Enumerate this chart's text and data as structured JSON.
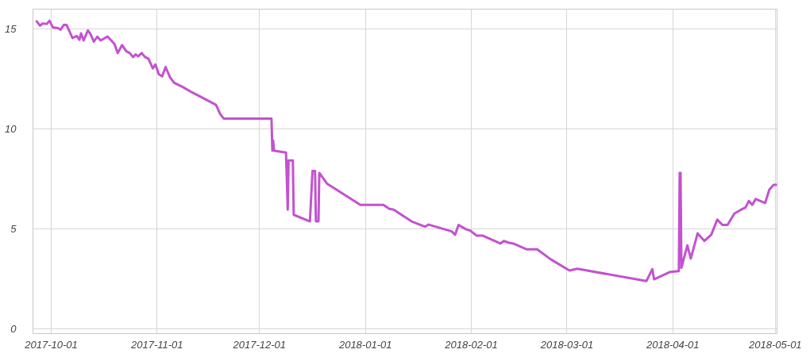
{
  "chart_data": {
    "type": "line",
    "x": [
      "2017-09-26T18:00",
      "2017-09-27T18:00",
      "2017-09-28T12:00",
      "2017-09-29T18:00",
      "2017-09-30T12:00",
      "2017-10-01T12:00",
      "2017-10-03T00:00",
      "2017-10-03T18:00",
      "2017-10-04T18:00",
      "2017-10-05T12:00",
      "2017-10-07T06:00",
      "2017-10-08T12:00",
      "2017-10-09T06:00",
      "2017-10-09T18:00",
      "2017-10-10T12:00",
      "2017-10-11T18:00",
      "2017-10-12T12:00",
      "2017-10-13T12:00",
      "2017-10-14T12:00",
      "2017-10-15T12:00",
      "2017-10-17T12:00",
      "2017-10-19T12:00",
      "2017-10-20T12:00",
      "2017-10-21T18:00",
      "2017-10-23T00:00",
      "2017-10-24T00:00",
      "2017-10-25T00:00",
      "2017-10-25T18:00",
      "2017-10-26T12:00",
      "2017-10-27T12:00",
      "2017-10-28T12:00",
      "2017-10-29T12:00",
      "2017-10-30T18:00",
      "2017-10-31T12:00",
      "2017-11-01T12:00",
      "2017-11-02T12:00",
      "2017-11-03T12:00",
      "2017-11-04T18:00",
      "2017-11-06T00:00",
      "2017-11-08T12:00",
      "2017-11-11T06:00",
      "2017-11-18T06:00",
      "2017-11-19T12:00",
      "2017-11-20T12:00",
      "2017-12-04T12:00",
      "2017-12-04T18:00",
      "2017-12-05T00:00",
      "2017-12-05T06:00",
      "2017-12-08T18:00",
      "2017-12-09T06:00",
      "2017-12-09T12:00",
      "2017-12-10T18:00",
      "2017-12-11T00:00",
      "2017-12-15T18:00",
      "2017-12-16T12:00",
      "2017-12-17T06:00",
      "2017-12-17T12:00",
      "2017-12-18T06:00",
      "2017-12-18T12:00",
      "2017-12-20T18:00",
      "2017-12-30T12:00",
      "2018-01-06T06:00",
      "2018-01-08T00:00",
      "2018-01-09T06:00",
      "2018-01-14T12:00",
      "2018-01-18T12:00",
      "2018-01-19T12:00",
      "2018-01-26T06:00",
      "2018-01-27T06:00",
      "2018-01-28T06:00",
      "2018-01-30T12:00",
      "2018-01-31T18:00",
      "2018-02-02T12:00",
      "2018-02-04T06:00",
      "2018-02-09T12:00",
      "2018-02-10T12:00",
      "2018-02-12T00:00",
      "2018-02-13T06:00",
      "2018-02-17T06:00",
      "2018-02-20T06:00",
      "2018-02-24T06:00",
      "2018-03-01T18:00",
      "2018-03-04T00:00",
      "2018-03-24T06:00",
      "2018-03-26T00:00",
      "2018-03-26T12:00",
      "2018-03-31T06:00",
      "2018-04-02T18:00",
      "2018-04-03T00:00",
      "2018-04-03T06:00",
      "2018-04-03T12:00",
      "2018-04-05T06:00",
      "2018-04-06T06:00",
      "2018-04-08T06:00",
      "2018-04-10T06:00",
      "2018-04-12T06:00",
      "2018-04-14T00:00",
      "2018-04-15T12:00",
      "2018-04-17T00:00",
      "2018-04-19T00:00",
      "2018-04-21T00:00",
      "2018-04-22T06:00",
      "2018-04-23T06:00",
      "2018-04-24T06:00",
      "2018-04-25T06:00",
      "2018-04-28T00:00",
      "2018-04-29T06:00",
      "2018-04-30T12:00",
      "2018-05-01T06:00"
    ],
    "series": [
      {
        "color": "#c352cf",
        "values": [
          15.39,
          15.17,
          15.28,
          15.26,
          15.42,
          15.09,
          15.05,
          14.97,
          15.22,
          15.21,
          14.55,
          14.66,
          14.46,
          14.79,
          14.43,
          14.93,
          14.75,
          14.37,
          14.62,
          14.43,
          14.63,
          14.26,
          13.8,
          14.2,
          13.89,
          13.8,
          13.6,
          13.73,
          13.64,
          13.8,
          13.6,
          13.51,
          13.03,
          13.23,
          12.74,
          12.63,
          13.1,
          12.6,
          12.31,
          12.1,
          11.83,
          11.21,
          10.74,
          10.52,
          10.52,
          8.91,
          9.41,
          8.91,
          8.82,
          5.96,
          8.42,
          8.42,
          5.7,
          5.37,
          7.89,
          7.89,
          5.37,
          5.37,
          7.8,
          7.26,
          6.2,
          6.2,
          6.0,
          5.96,
          5.37,
          5.1,
          5.21,
          4.87,
          4.7,
          5.19,
          4.97,
          4.9,
          4.66,
          4.66,
          4.26,
          4.39,
          4.3,
          4.26,
          3.97,
          3.97,
          3.47,
          2.91,
          3.0,
          2.38,
          2.98,
          2.47,
          2.84,
          2.88,
          7.8,
          7.8,
          3.04,
          4.17,
          3.51,
          4.77,
          4.39,
          4.7,
          5.46,
          5.19,
          5.19,
          5.76,
          5.96,
          6.06,
          6.39,
          6.2,
          6.49,
          6.29,
          6.96,
          7.2,
          7.2
        ]
      }
    ],
    "xlim": [
      "2017-09-25T16:00",
      "2018-05-01T12:00"
    ],
    "xticks": [
      "2017-10-01",
      "2017-11-01",
      "2017-12-01",
      "2018-01-01",
      "2018-02-01",
      "2018-03-01",
      "2018-04-01",
      "2018-05-01"
    ],
    "ylim": [
      -0.25,
      16
    ],
    "yticks": [
      0,
      5,
      10,
      15
    ],
    "grid": true
  }
}
